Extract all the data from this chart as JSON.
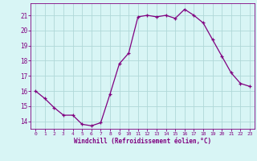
{
  "x": [
    0,
    1,
    2,
    3,
    4,
    5,
    6,
    7,
    8,
    9,
    10,
    11,
    12,
    13,
    14,
    15,
    16,
    17,
    18,
    19,
    20,
    21,
    22,
    23
  ],
  "y": [
    16.0,
    15.5,
    14.9,
    14.4,
    14.4,
    13.8,
    13.7,
    13.9,
    15.8,
    17.8,
    18.5,
    20.9,
    21.0,
    20.9,
    21.0,
    20.8,
    21.4,
    21.0,
    20.5,
    19.4,
    18.3,
    17.2,
    16.5,
    16.3
  ],
  "line_color": "#800080",
  "marker": "+",
  "bg_color": "#d8f5f5",
  "grid_color": "#b0d8d8",
  "xlabel": "Windchill (Refroidissement éolien,°C)",
  "xlabel_color": "#800080",
  "ylabel_ticks": [
    14,
    15,
    16,
    17,
    18,
    19,
    20,
    21
  ],
  "xlim": [
    -0.5,
    23.5
  ],
  "ylim": [
    13.5,
    21.8
  ],
  "tick_color": "#800080",
  "axis_color": "#800080",
  "figsize": [
    3.2,
    2.0
  ],
  "dpi": 100
}
